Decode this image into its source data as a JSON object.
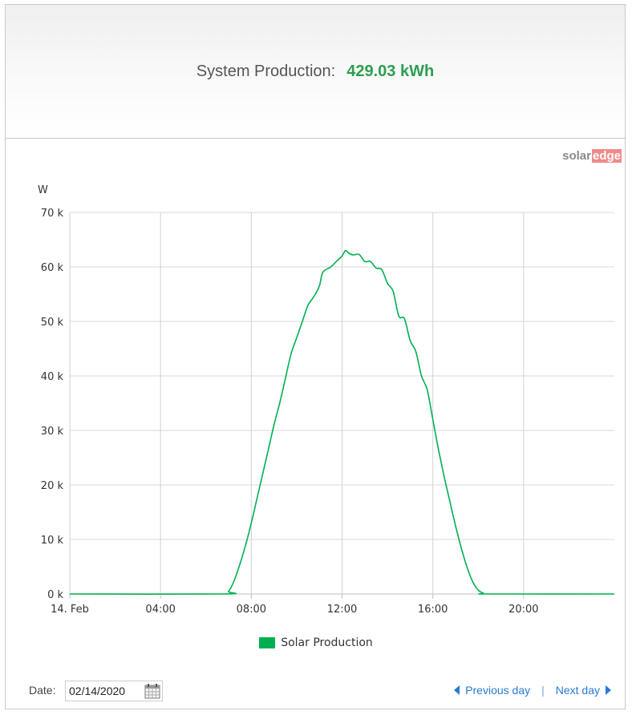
{
  "header": {
    "label": "System Production:",
    "value": "429.03 kWh"
  },
  "logo": {
    "part1": "solar",
    "part2": "edge"
  },
  "chart_data": {
    "type": "line",
    "ylabel": "W",
    "ylim": [
      0,
      70000
    ],
    "xlim": [
      0,
      24
    ],
    "yticks": [
      {
        "v": 0,
        "label": "0 k"
      },
      {
        "v": 10000,
        "label": "10 k"
      },
      {
        "v": 20000,
        "label": "20 k"
      },
      {
        "v": 30000,
        "label": "30 k"
      },
      {
        "v": 40000,
        "label": "40 k"
      },
      {
        "v": 50000,
        "label": "50 k"
      },
      {
        "v": 60000,
        "label": "60 k"
      },
      {
        "v": 70000,
        "label": "70 k"
      }
    ],
    "xticks": [
      {
        "v": 0,
        "label": "14. Feb"
      },
      {
        "v": 4,
        "label": "04:00"
      },
      {
        "v": 8,
        "label": "08:00"
      },
      {
        "v": 12,
        "label": "12:00"
      },
      {
        "v": 16,
        "label": "16:00"
      },
      {
        "v": 20,
        "label": "20:00"
      }
    ],
    "grid": true,
    "legend_position": "bottom",
    "series": [
      {
        "name": "Solar Production",
        "color": "#00b050",
        "points": [
          [
            0,
            0
          ],
          [
            6.75,
            0
          ],
          [
            7.0,
            500
          ],
          [
            7.25,
            2500
          ],
          [
            7.5,
            5500
          ],
          [
            7.75,
            9000
          ],
          [
            8.0,
            13000
          ],
          [
            8.25,
            17500
          ],
          [
            8.5,
            22000
          ],
          [
            8.75,
            26500
          ],
          [
            9.0,
            31000
          ],
          [
            9.25,
            35000
          ],
          [
            9.5,
            39500
          ],
          [
            9.75,
            44000
          ],
          [
            10.0,
            47000
          ],
          [
            10.25,
            50000
          ],
          [
            10.5,
            53000
          ],
          [
            10.75,
            54500
          ],
          [
            11.0,
            56500
          ],
          [
            11.15,
            59000
          ],
          [
            11.5,
            60000
          ],
          [
            11.75,
            61000
          ],
          [
            12.0,
            62000
          ],
          [
            12.15,
            63000
          ],
          [
            12.3,
            62500
          ],
          [
            12.5,
            62200
          ],
          [
            12.75,
            62300
          ],
          [
            13.0,
            61000
          ],
          [
            13.25,
            61000
          ],
          [
            13.5,
            59800
          ],
          [
            13.75,
            59500
          ],
          [
            14.0,
            57000
          ],
          [
            14.25,
            55500
          ],
          [
            14.5,
            51000
          ],
          [
            14.75,
            50500
          ],
          [
            15.0,
            46500
          ],
          [
            15.25,
            44500
          ],
          [
            15.5,
            40000
          ],
          [
            15.75,
            37500
          ],
          [
            16.0,
            32000
          ],
          [
            16.25,
            26500
          ],
          [
            16.5,
            21500
          ],
          [
            16.75,
            17000
          ],
          [
            17.0,
            12500
          ],
          [
            17.25,
            8500
          ],
          [
            17.5,
            5000
          ],
          [
            17.75,
            2300
          ],
          [
            18.0,
            700
          ],
          [
            18.25,
            100
          ],
          [
            18.5,
            0
          ],
          [
            24,
            0
          ]
        ]
      }
    ]
  },
  "footer": {
    "date_label": "Date:",
    "date_value": "02/14/2020",
    "prev_label": "Previous day",
    "separator": "|",
    "next_label": "Next day"
  }
}
